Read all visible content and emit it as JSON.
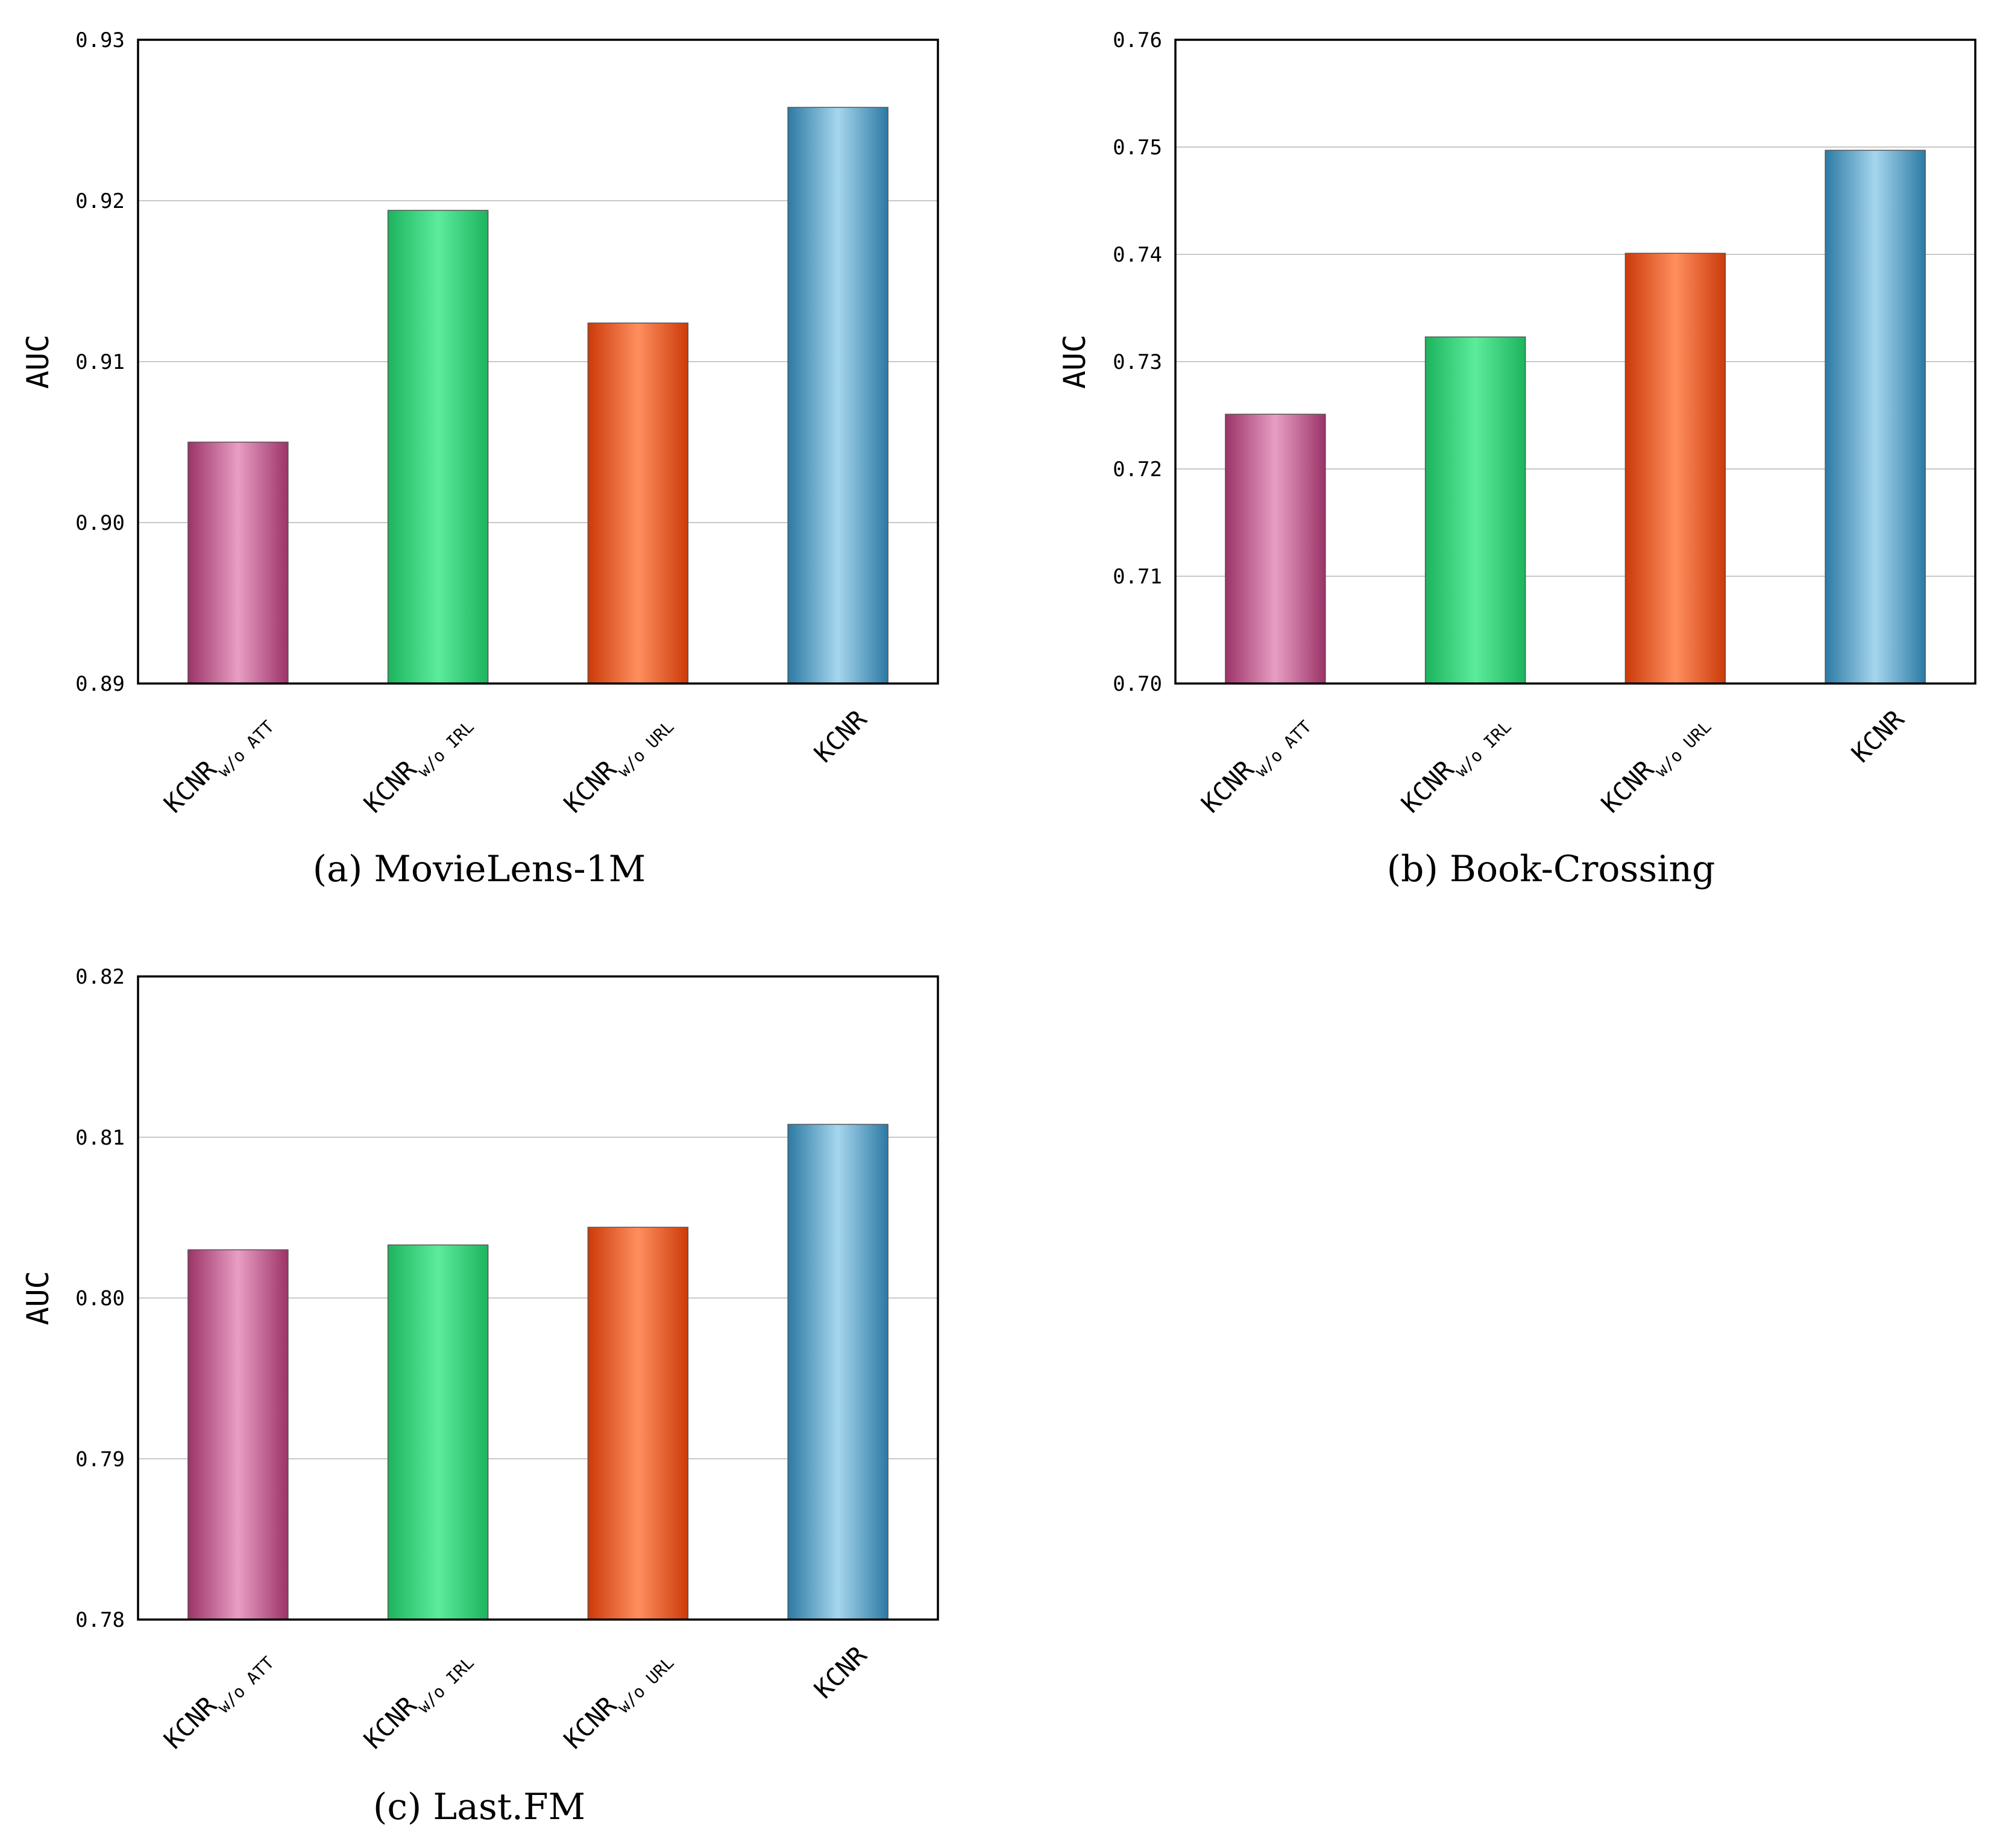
{
  "chart_data": [
    {
      "type": "bar",
      "caption": "(a) MovieLens-1M",
      "ylabel": "AUC",
      "ylim": [
        0.89,
        0.93
      ],
      "yticks": [
        "0.89",
        "0.90",
        "0.91",
        "0.92",
        "0.93"
      ],
      "categories": [
        {
          "base": "KCNR",
          "sub": "w/o ATT"
        },
        {
          "base": "KCNR",
          "sub": "w/o IRL"
        },
        {
          "base": "KCNR",
          "sub": "w/o URL"
        },
        {
          "base": "KCNR",
          "sub": ""
        }
      ],
      "values": [
        0.905,
        0.9194,
        0.9124,
        0.9258
      ],
      "grid": true
    },
    {
      "type": "bar",
      "caption": "(b) Book-Crossing",
      "ylabel": "AUC",
      "ylim": [
        0.7,
        0.76
      ],
      "yticks": [
        "0.70",
        "0.71",
        "0.72",
        "0.73",
        "0.74",
        "0.75",
        "0.76"
      ],
      "categories": [
        {
          "base": "KCNR",
          "sub": "w/o ATT"
        },
        {
          "base": "KCNR",
          "sub": "w/o IRL"
        },
        {
          "base": "KCNR",
          "sub": "w/o URL"
        },
        {
          "base": "KCNR",
          "sub": ""
        }
      ],
      "values": [
        0.7251,
        0.7323,
        0.7401,
        0.7497
      ],
      "grid": true
    },
    {
      "type": "bar",
      "caption": "(c) Last.FM",
      "ylabel": "AUC",
      "ylim": [
        0.78,
        0.82
      ],
      "yticks": [
        "0.78",
        "0.79",
        "0.80",
        "0.81",
        "0.82"
      ],
      "categories": [
        {
          "base": "KCNR",
          "sub": "w/o ATT"
        },
        {
          "base": "KCNR",
          "sub": "w/o IRL"
        },
        {
          "base": "KCNR",
          "sub": "w/o URL"
        },
        {
          "base": "KCNR",
          "sub": ""
        }
      ],
      "values": [
        0.803,
        0.8033,
        0.8044,
        0.8108
      ],
      "grid": true
    }
  ],
  "bar_colors": [
    {
      "edge": "#9c3368",
      "mid": "#e89ec4"
    },
    {
      "edge": "#1db45e",
      "mid": "#5cec9c"
    },
    {
      "edge": "#cc3a0a",
      "mid": "#ff8f5f"
    },
    {
      "edge": "#2c7aa4",
      "mid": "#a6d6ee"
    }
  ],
  "colors": {
    "grid": "#c8c8c8",
    "axis": "#000000"
  }
}
